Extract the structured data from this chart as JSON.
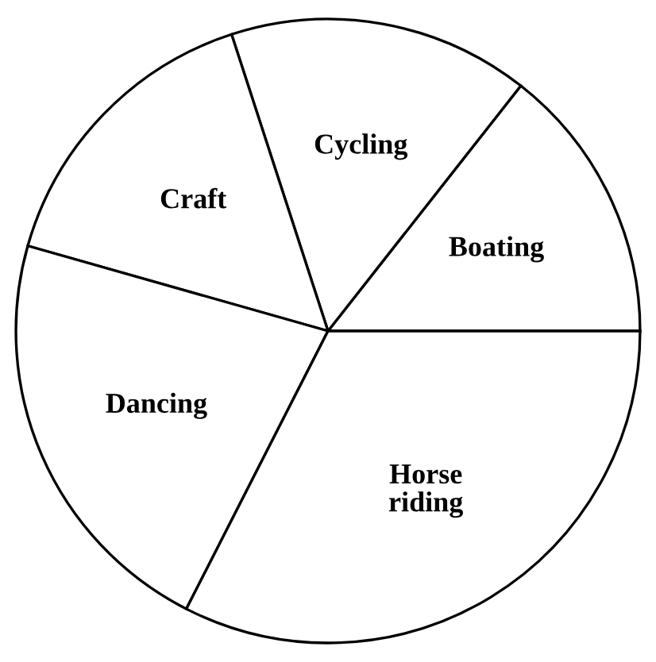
{
  "chart_data": {
    "type": "pie",
    "categories": [
      "Boating",
      "Cycling",
      "Craft",
      "Dancing",
      "Horse\nriding"
    ],
    "values": [
      14.4,
      15.6,
      15.6,
      21.9,
      32.5
    ],
    "colors": [
      "#ffffff",
      "#ffffff",
      "#ffffff",
      "#ffffff",
      "#ffffff"
    ]
  }
}
